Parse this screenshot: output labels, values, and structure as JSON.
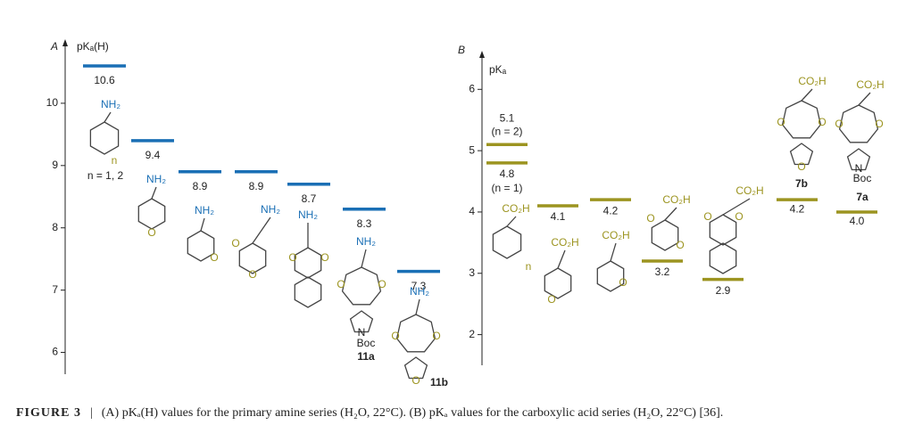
{
  "chart_data": [
    {
      "type": "level",
      "panel": "A",
      "y_label": "pKₐ(H)",
      "ylim": [
        5.65,
        11.0
      ],
      "yticks": [
        6,
        7,
        8,
        9,
        10
      ],
      "color": "#1a6fb5",
      "categories": [
        null,
        null,
        null,
        null,
        null,
        null,
        null
      ],
      "values": [
        10.6,
        9.4,
        8.9,
        8.9,
        8.7,
        8.3,
        7.3
      ],
      "structures": [
        [
          "NH₂",
          "n",
          "n = 1, 2"
        ],
        [
          "NH₂",
          "O"
        ],
        [
          "NH₂",
          "O"
        ],
        [
          "NH₂",
          "O",
          "O"
        ],
        [
          "NH₂",
          "O",
          "O"
        ],
        [
          "NH₂",
          "O",
          "O",
          "N",
          "Boc",
          "11a"
        ],
        [
          "NH₂",
          "O",
          "O",
          "O",
          "11b"
        ]
      ]
    },
    {
      "type": "level",
      "panel": "B",
      "y_label": "pKₐ",
      "ylim": [
        1.5,
        6.6
      ],
      "yticks": [
        2,
        3,
        4,
        5,
        6
      ],
      "color": "#9c9420",
      "categories": [
        null,
        null,
        null,
        null,
        null,
        null,
        null,
        null
      ],
      "values": [
        5.1,
        4.8,
        4.1,
        4.2,
        3.2,
        2.9,
        4.2,
        4.0
      ],
      "value_labels": [
        "5.1",
        "4.8",
        "4.1",
        "4.2",
        "3.2",
        "2.9",
        "4.2",
        "4.0"
      ],
      "notes": [
        "(n = 2)",
        "(n = 1)"
      ],
      "structures": [
        [
          "CO₂H",
          "n"
        ],
        [
          "CO₂H",
          "O"
        ],
        [
          "CO₂H",
          "O"
        ],
        [
          "CO₂H",
          "O",
          "O"
        ],
        [
          "CO₂H",
          "O",
          "O"
        ],
        [
          "CO₂H",
          "O",
          "O",
          "O",
          "7b"
        ],
        [
          "CO₂H",
          "O",
          "O",
          "N",
          "Boc",
          "7a"
        ]
      ]
    }
  ],
  "caption": {
    "label": "FIGURE 3",
    "separator": "|",
    "text": "(A) pKₐ(H) values for the primary amine series (H₂O, 22°C). (B) pKₐ values for the carboxylic acid series (H₂O, 22°C) [36]."
  }
}
